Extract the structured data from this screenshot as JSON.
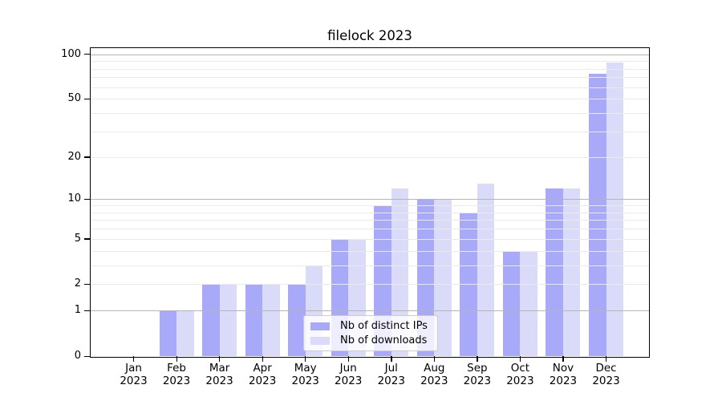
{
  "title": "filelock 2023",
  "chart_data": {
    "type": "bar",
    "title": "filelock 2023",
    "categories": [
      "Jan",
      "Feb",
      "Mar",
      "Apr",
      "May",
      "Jun",
      "Jul",
      "Aug",
      "Sep",
      "Oct",
      "Nov",
      "Dec"
    ],
    "year": "2023",
    "series": [
      {
        "name": "Nb of distinct IPs",
        "color": "#a9a9f9",
        "values": [
          0,
          1,
          2,
          2,
          2,
          5,
          9,
          10,
          8,
          4,
          12,
          74
        ]
      },
      {
        "name": "Nb of downloads",
        "color": "#dadaf9",
        "values": [
          0,
          1,
          2,
          2,
          3,
          5,
          12,
          10,
          13,
          4,
          12,
          88
        ]
      }
    ],
    "xlabel": "",
    "ylabel": "",
    "yticks": [
      0,
      1,
      2,
      5,
      10,
      20,
      50,
      100
    ],
    "ylim": [
      0,
      110
    ],
    "yscale": "log10(1+y)",
    "grid": "horizontal major at 1,10,100 and minor at 2-9,20-90",
    "legend_position": "inside lower-center"
  }
}
